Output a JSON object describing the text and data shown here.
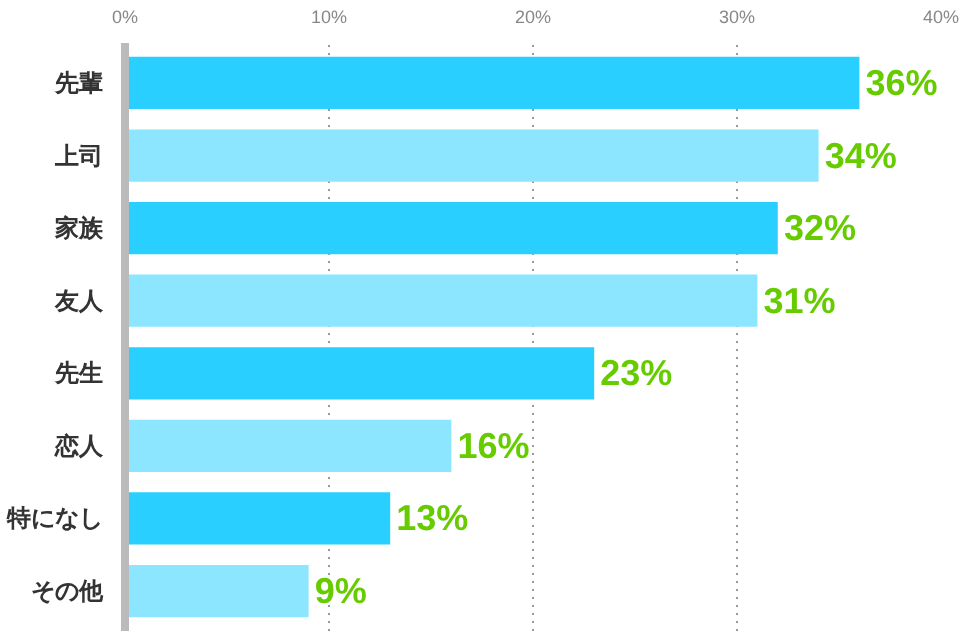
{
  "chart_data": {
    "type": "bar",
    "orientation": "horizontal",
    "categories": [
      "先輩",
      "上司",
      "家族",
      "友人",
      "先生",
      "恋人",
      "特になし",
      "その他"
    ],
    "values": [
      36,
      34,
      32,
      31,
      23,
      16,
      13,
      9
    ],
    "colors": [
      "#29d0ff",
      "#8de6ff",
      "#29d0ff",
      "#8de6ff",
      "#29d0ff",
      "#8de6ff",
      "#29d0ff",
      "#8de6ff"
    ],
    "value_labels": [
      "36%",
      "34%",
      "32%",
      "31%",
      "23%",
      "16%",
      "13%",
      "9%"
    ],
    "xlim": [
      0,
      40
    ],
    "xticks": [
      {
        "value": 0,
        "label": "0%"
      },
      {
        "value": 10,
        "label": "10%"
      },
      {
        "value": 20,
        "label": "20%"
      },
      {
        "value": 30,
        "label": "30%"
      },
      {
        "value": 40,
        "label": "40%"
      }
    ],
    "grid": "x"
  }
}
